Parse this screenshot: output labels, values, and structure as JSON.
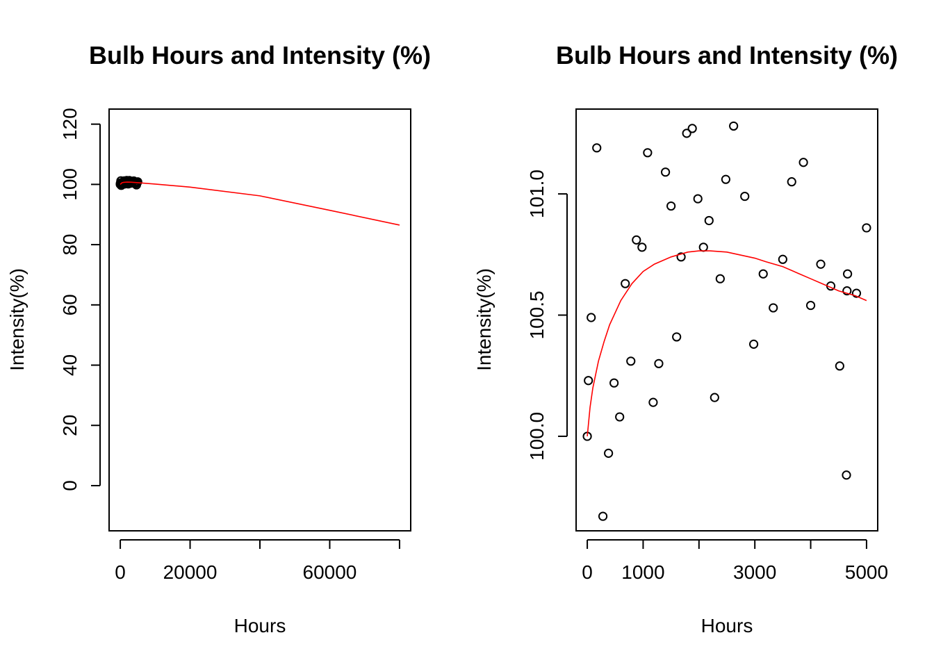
{
  "chart_data": [
    {
      "type": "scatter",
      "title": "Bulb Hours and Intensity (%)",
      "xlabel": "Hours",
      "ylabel": "Intensity(%)",
      "xlim": [
        -3200,
        83200
      ],
      "ylim": [
        -15,
        125
      ],
      "xticks": [
        0,
        20000,
        40000,
        60000,
        80000
      ],
      "xtick_labels": [
        "0",
        "20000",
        "",
        "60000",
        ""
      ],
      "yticks": [
        0,
        20,
        40,
        60,
        80,
        100,
        120
      ],
      "ytick_labels": [
        "0",
        "20",
        "40",
        "60",
        "80",
        "100",
        "120"
      ],
      "grid": false,
      "line_color": "#ff0000",
      "point_color": "#000000",
      "points_from": "detail",
      "fit_line": {
        "name": "",
        "x": [
          0,
          500,
          1000,
          2000,
          3000,
          4000,
          5000,
          10000,
          20000,
          40000,
          60000,
          80000
        ],
        "y": [
          100.0,
          100.55,
          100.68,
          100.76,
          100.74,
          100.66,
          100.56,
          100.1,
          99.1,
          96.2,
          91.4,
          86.5
        ]
      }
    },
    {
      "type": "scatter",
      "title": "Bulb Hours and Intensity (%)",
      "xlabel": "Hours",
      "ylabel": "Intensity(%)",
      "xlim": [
        -200,
        5200
      ],
      "ylim": [
        99.61,
        101.35
      ],
      "xticks": [
        0,
        1000,
        2000,
        3000,
        4000,
        5000
      ],
      "xtick_labels": [
        "0",
        "1000",
        "",
        "3000",
        "",
        "5000"
      ],
      "yticks": [
        100.0,
        100.5,
        101.0
      ],
      "ytick_labels": [
        "100.0",
        "100.5",
        "101.0"
      ],
      "grid": false,
      "line_color": "#ff0000",
      "point_color": "#000000",
      "points": {
        "x": [
          0,
          20,
          70,
          170,
          280,
          380,
          480,
          580,
          680,
          780,
          880,
          980,
          1080,
          1180,
          1280,
          1400,
          1500,
          1600,
          1680,
          1780,
          1880,
          1980,
          2080,
          2180,
          2280,
          2380,
          2480,
          2620,
          2820,
          2980,
          3150,
          3330,
          3500,
          3660,
          3870,
          4000,
          4180,
          4360,
          4520,
          4640,
          4660,
          4650,
          4820,
          5000
        ],
        "y": [
          100.0,
          100.23,
          100.49,
          101.19,
          99.67,
          99.93,
          100.22,
          100.08,
          100.63,
          100.31,
          100.81,
          100.78,
          101.17,
          100.14,
          100.3,
          101.09,
          100.95,
          100.41,
          100.74,
          101.25,
          101.27,
          100.98,
          100.78,
          100.89,
          100.16,
          100.65,
          101.06,
          101.28,
          100.99,
          100.38,
          100.67,
          100.53,
          100.73,
          101.05,
          101.13,
          100.54,
          100.71,
          100.62,
          100.29,
          99.84,
          100.67,
          100.6,
          100.59,
          100.86
        ]
      },
      "fit_line": {
        "name": "",
        "x": [
          0,
          50,
          100,
          200,
          300,
          400,
          500,
          600,
          800,
          1000,
          1200,
          1500,
          1800,
          2000,
          2200,
          2500,
          2800,
          3000,
          3200,
          3500,
          3800,
          4000,
          4200,
          4500,
          4800,
          5000
        ],
        "y": [
          100.0,
          100.12,
          100.2,
          100.31,
          100.39,
          100.46,
          100.51,
          100.56,
          100.63,
          100.68,
          100.71,
          100.74,
          100.76,
          100.765,
          100.765,
          100.76,
          100.745,
          100.735,
          100.72,
          100.7,
          100.67,
          100.65,
          100.63,
          100.6,
          100.58,
          100.56
        ]
      }
    }
  ]
}
